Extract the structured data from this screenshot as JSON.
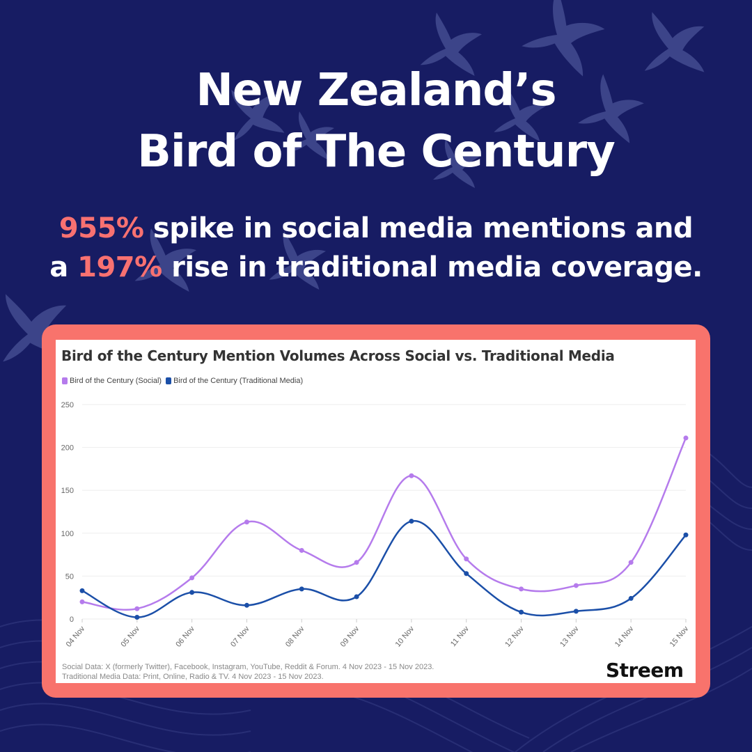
{
  "headline": {
    "line1": "New Zealand’s",
    "line2": "Bird of The Century"
  },
  "subheadline": {
    "stat1": "955%",
    "text1": " spike in social media mentions and",
    "text2_pre": "a ",
    "stat2": "197%",
    "text2_post": " rise in traditional media coverage."
  },
  "colors": {
    "background": "#171c63",
    "accent": "#f87171",
    "card_border": "#f8736c",
    "social": "#b57bec",
    "traditional": "#1b4fa8"
  },
  "source": {
    "line1": "Social Data: X (formerly Twitter), Facebook, Instagram, YouTube, Reddit & Forum. 4 Nov 2023 - 15 Nov 2023.",
    "line2": "Traditional Media Data: Print, Online, Radio & TV. 4 Nov 2023 - 15 Nov 2023."
  },
  "brand": "Streem",
  "chart_data": {
    "type": "line",
    "title": "Bird of the Century Mention Volumes Across Social vs. Traditional Media",
    "categories": [
      "04 Nov",
      "05 Nov",
      "06 Nov",
      "07 Nov",
      "08 Nov",
      "09 Nov",
      "10 Nov",
      "11 Nov",
      "12 Nov",
      "13 Nov",
      "14 Nov",
      "15 Nov"
    ],
    "series": [
      {
        "name": "Bird of the Century (Social)",
        "color": "#b57bec",
        "values": [
          20,
          12,
          48,
          113,
          80,
          66,
          167,
          70,
          35,
          39,
          66,
          211
        ]
      },
      {
        "name": "Bird of the Century (Traditional Media)",
        "color": "#1b4fa8",
        "values": [
          33,
          2,
          31,
          16,
          35,
          26,
          114,
          53,
          8,
          9,
          24,
          98
        ]
      }
    ],
    "yticks": [
      "0",
      "50",
      "100",
      "150",
      "200",
      "250"
    ],
    "ylim": [
      0,
      250
    ],
    "grid": true,
    "legend_position": "top-left"
  }
}
